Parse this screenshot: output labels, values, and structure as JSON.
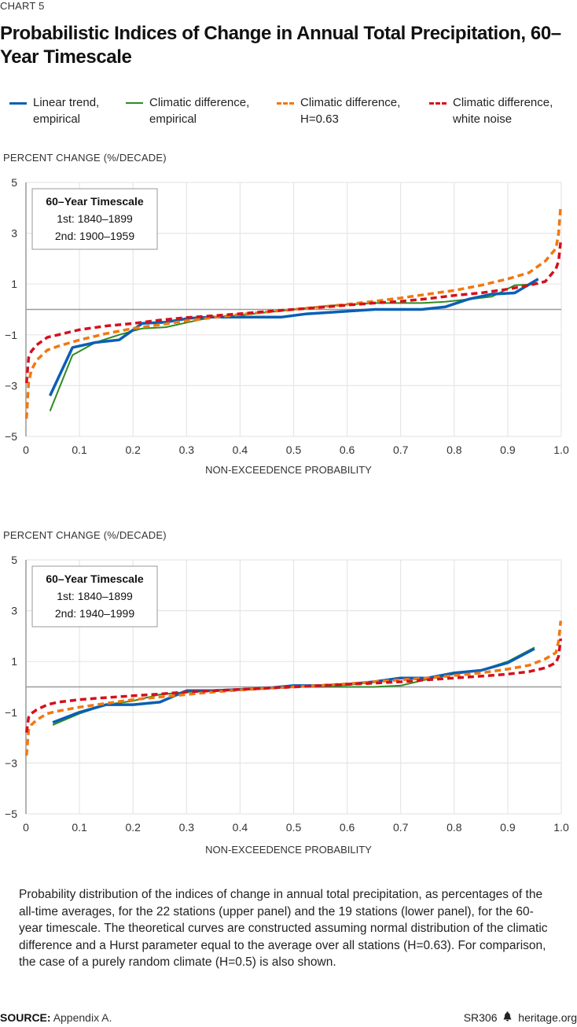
{
  "header": {
    "kicker": "CHART 5",
    "title": "Probabilistic Indices of Change in Annual Total Precipitation, 60–Year Timescale"
  },
  "legend": [
    {
      "label": "Linear trend,\nempirical",
      "color": "#0a5fb4",
      "style": "solid-thick"
    },
    {
      "label": "Climatic difference,\nempirical",
      "color": "#2e8b22",
      "style": "solid-thin"
    },
    {
      "label": "Climatic difference,\nH=0.63",
      "color": "#f07810",
      "style": "dashed"
    },
    {
      "label": "Climatic difference,\nwhite noise",
      "color": "#d4101e",
      "style": "dashed"
    }
  ],
  "caption": "Probability distribution of the indices of change in annual total precipitation, as percentages of the all-time averages, for the 22 stations (upper panel) and the 19 stations (lower panel), for the 60-year timescale. The theoretical curves are constructed assuming normal distribution of the climatic difference and a Hurst parameter equal to the average over all stations (H=0.63). For comparison, the case of a purely random climate (H=0.5) is also shown.",
  "footer": {
    "source_label": "SOURCE:",
    "source_text": "Appendix A.",
    "report_id": "SR306",
    "logo_icon": "liberty-bell-icon",
    "site": "heritage.org"
  },
  "chart_data": [
    {
      "type": "line",
      "panel": "upper",
      "ylabel": "PERCENT CHANGE (%/DECADE)",
      "xlabel": "NON-EXCEEDENCE PROBABILITY",
      "xlim": [
        0,
        1.0
      ],
      "ylim": [
        -5,
        5
      ],
      "xticks": [
        "0",
        "0.1",
        "0.2",
        "0.3",
        "0.4",
        "0.5",
        "0.6",
        "0.7",
        "0.8",
        "0.9",
        "1.0"
      ],
      "yticks": [
        "5",
        "3",
        "1",
        "−1",
        "−3",
        "−5"
      ],
      "ytick_values": [
        5,
        3,
        1,
        -1,
        -3,
        -5
      ],
      "grid": true,
      "annotation": {
        "title": "60–Year Timescale",
        "line1": "1st: 1840–1899",
        "line2": "2nd: 1900–1959"
      },
      "series": [
        {
          "name": "Linear trend, empirical",
          "x": [
            0.045,
            0.087,
            0.13,
            0.174,
            0.217,
            0.261,
            0.304,
            0.348,
            0.391,
            0.435,
            0.478,
            0.522,
            0.565,
            0.609,
            0.652,
            0.696,
            0.739,
            0.783,
            0.826,
            0.87,
            0.913,
            0.957
          ],
          "y": [
            -3.4,
            -1.5,
            -1.3,
            -1.2,
            -0.55,
            -0.5,
            -0.35,
            -0.3,
            -0.3,
            -0.3,
            -0.3,
            -0.18,
            -0.12,
            -0.06,
            0.0,
            0.0,
            0.0,
            0.1,
            0.4,
            0.6,
            0.65,
            1.2
          ]
        },
        {
          "name": "Climatic difference, empirical",
          "x": [
            0.045,
            0.087,
            0.13,
            0.174,
            0.217,
            0.261,
            0.304,
            0.348,
            0.391,
            0.435,
            0.478,
            0.522,
            0.565,
            0.609,
            0.652,
            0.696,
            0.739,
            0.783,
            0.826,
            0.87,
            0.913,
            0.957
          ],
          "y": [
            -4.0,
            -1.8,
            -1.3,
            -1.0,
            -0.75,
            -0.7,
            -0.5,
            -0.3,
            -0.25,
            -0.15,
            -0.05,
            0.05,
            0.15,
            0.2,
            0.25,
            0.25,
            0.25,
            0.3,
            0.4,
            0.5,
            0.95,
            1.0
          ]
        },
        {
          "name": "Climatic difference, H=0.63",
          "x": [
            0.001,
            0.005,
            0.01,
            0.02,
            0.04,
            0.06,
            0.1,
            0.15,
            0.2,
            0.25,
            0.3,
            0.35,
            0.4,
            0.45,
            0.5,
            0.55,
            0.6,
            0.65,
            0.7,
            0.75,
            0.8,
            0.85,
            0.9,
            0.94,
            0.97,
            0.99,
            0.995,
            0.999
          ],
          "y": [
            -4.3,
            -2.9,
            -2.4,
            -2.0,
            -1.6,
            -1.45,
            -1.2,
            -0.95,
            -0.75,
            -0.6,
            -0.45,
            -0.32,
            -0.2,
            -0.1,
            0.0,
            0.1,
            0.2,
            0.32,
            0.45,
            0.6,
            0.75,
            0.95,
            1.2,
            1.45,
            1.9,
            2.4,
            3.0,
            4.1
          ]
        },
        {
          "name": "Climatic difference, white noise",
          "x": [
            0.001,
            0.005,
            0.01,
            0.02,
            0.04,
            0.06,
            0.1,
            0.15,
            0.2,
            0.25,
            0.3,
            0.35,
            0.4,
            0.45,
            0.5,
            0.55,
            0.6,
            0.65,
            0.7,
            0.75,
            0.8,
            0.85,
            0.9,
            0.94,
            0.97,
            0.99,
            0.995,
            0.999
          ],
          "y": [
            -2.9,
            -1.9,
            -1.65,
            -1.4,
            -1.1,
            -1.0,
            -0.8,
            -0.65,
            -0.55,
            -0.42,
            -0.32,
            -0.25,
            -0.17,
            -0.08,
            0.0,
            0.08,
            0.17,
            0.25,
            0.32,
            0.42,
            0.55,
            0.65,
            0.8,
            0.95,
            1.1,
            1.6,
            1.9,
            2.7
          ]
        }
      ]
    },
    {
      "type": "line",
      "panel": "lower",
      "ylabel": "PERCENT CHANGE (%/DECADE)",
      "xlabel": "NON-EXCEEDENCE PROBABILITY",
      "xlim": [
        0,
        1.0
      ],
      "ylim": [
        -5,
        5
      ],
      "xticks": [
        "0",
        "0.1",
        "0.2",
        "0.3",
        "0.4",
        "0.5",
        "0.6",
        "0.7",
        "0.8",
        "0.9",
        "1.0"
      ],
      "yticks": [
        "5",
        "3",
        "1",
        "−1",
        "−3",
        "−5"
      ],
      "ytick_values": [
        5,
        3,
        1,
        -1,
        -3,
        -5
      ],
      "grid": true,
      "annotation": {
        "title": "60–Year Timescale",
        "line1": "1st: 1840–1899",
        "line2": "2nd: 1940–1999"
      },
      "series": [
        {
          "name": "Linear trend, empirical",
          "x": [
            0.05,
            0.1,
            0.15,
            0.2,
            0.25,
            0.3,
            0.35,
            0.4,
            0.45,
            0.5,
            0.55,
            0.6,
            0.65,
            0.7,
            0.75,
            0.8,
            0.85,
            0.9,
            0.95
          ],
          "y": [
            -1.4,
            -1.0,
            -0.7,
            -0.7,
            -0.6,
            -0.15,
            -0.15,
            -0.1,
            -0.05,
            0.05,
            0.05,
            0.1,
            0.2,
            0.35,
            0.35,
            0.55,
            0.65,
            0.95,
            1.5
          ]
        },
        {
          "name": "Climatic difference, empirical",
          "x": [
            0.05,
            0.1,
            0.15,
            0.2,
            0.25,
            0.3,
            0.35,
            0.4,
            0.45,
            0.5,
            0.55,
            0.6,
            0.65,
            0.7,
            0.75,
            0.8,
            0.85,
            0.9,
            0.95
          ],
          "y": [
            -1.5,
            -1.05,
            -0.7,
            -0.55,
            -0.3,
            -0.2,
            -0.15,
            -0.1,
            -0.05,
            0.0,
            0.0,
            0.0,
            0.0,
            0.05,
            0.3,
            0.5,
            0.65,
            1.0,
            1.55
          ]
        },
        {
          "name": "Climatic difference, H=0.63",
          "x": [
            0.001,
            0.005,
            0.01,
            0.02,
            0.04,
            0.06,
            0.1,
            0.15,
            0.2,
            0.25,
            0.3,
            0.35,
            0.4,
            0.45,
            0.5,
            0.55,
            0.6,
            0.65,
            0.7,
            0.75,
            0.8,
            0.85,
            0.9,
            0.94,
            0.97,
            0.99,
            0.995,
            0.999
          ],
          "y": [
            -2.7,
            -1.7,
            -1.5,
            -1.3,
            -1.05,
            -0.95,
            -0.8,
            -0.65,
            -0.5,
            -0.4,
            -0.3,
            -0.2,
            -0.12,
            -0.06,
            0.0,
            0.06,
            0.12,
            0.2,
            0.28,
            0.35,
            0.45,
            0.55,
            0.7,
            0.85,
            1.1,
            1.35,
            1.8,
            2.6
          ]
        },
        {
          "name": "Climatic difference, white noise",
          "x": [
            0.001,
            0.005,
            0.01,
            0.02,
            0.04,
            0.06,
            0.1,
            0.15,
            0.2,
            0.25,
            0.3,
            0.35,
            0.4,
            0.45,
            0.5,
            0.55,
            0.6,
            0.65,
            0.7,
            0.75,
            0.8,
            0.85,
            0.9,
            0.94,
            0.97,
            0.99,
            0.995,
            0.999
          ],
          "y": [
            -1.8,
            -1.2,
            -1.05,
            -0.9,
            -0.7,
            -0.6,
            -0.5,
            -0.42,
            -0.35,
            -0.28,
            -0.2,
            -0.15,
            -0.1,
            -0.05,
            0.0,
            0.05,
            0.1,
            0.15,
            0.2,
            0.28,
            0.35,
            0.42,
            0.5,
            0.6,
            0.75,
            0.95,
            1.2,
            1.9
          ]
        }
      ]
    }
  ]
}
